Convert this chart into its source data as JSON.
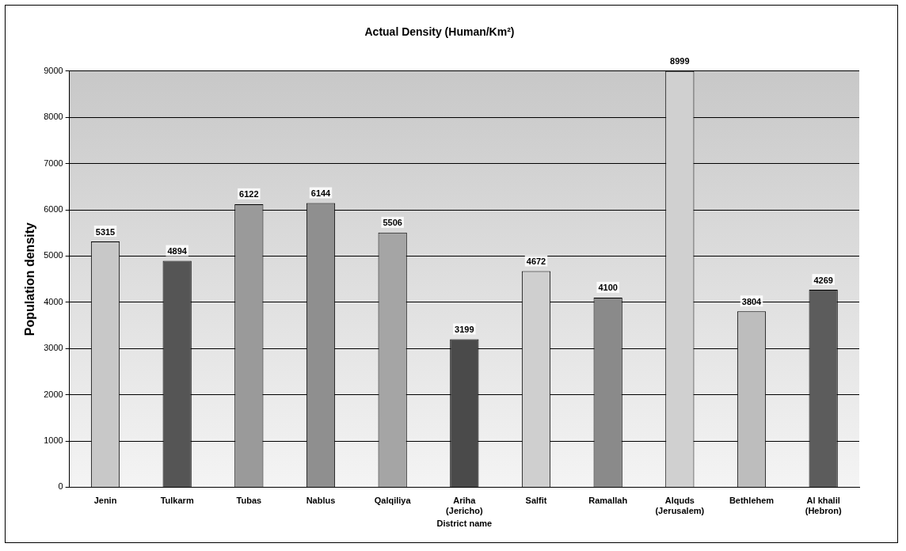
{
  "chart_data": {
    "type": "bar",
    "title": "Actual Density (Human/Km²)",
    "xlabel": "District name",
    "ylabel": "Population density",
    "categories": [
      "Jenin",
      "Tulkarm",
      "Tubas",
      "Nablus",
      "Qalqiliya",
      "Ariha (Jericho)",
      "Salfit",
      "Ramallah",
      "Alquds (Jerusalem)",
      "Bethlehem",
      "Al khalil (Hebron)"
    ],
    "values": [
      5315,
      4894,
      6122,
      6144,
      5506,
      3199,
      4672,
      4100,
      8999,
      3804,
      4269
    ],
    "colors": [
      "#c8c8c8",
      "#555555",
      "#9a9a9a",
      "#8f8f8f",
      "#a5a5a5",
      "#4a4a4a",
      "#cfcfcf",
      "#8a8a8a",
      "#d0d0d0",
      "#bdbdbd",
      "#5c5c5c"
    ],
    "ylim": [
      0,
      9000
    ],
    "yticks": [
      0,
      1000,
      2000,
      3000,
      4000,
      5000,
      6000,
      7000,
      8000,
      9000
    ],
    "grid": "y",
    "legend": false,
    "data_labels": true
  }
}
